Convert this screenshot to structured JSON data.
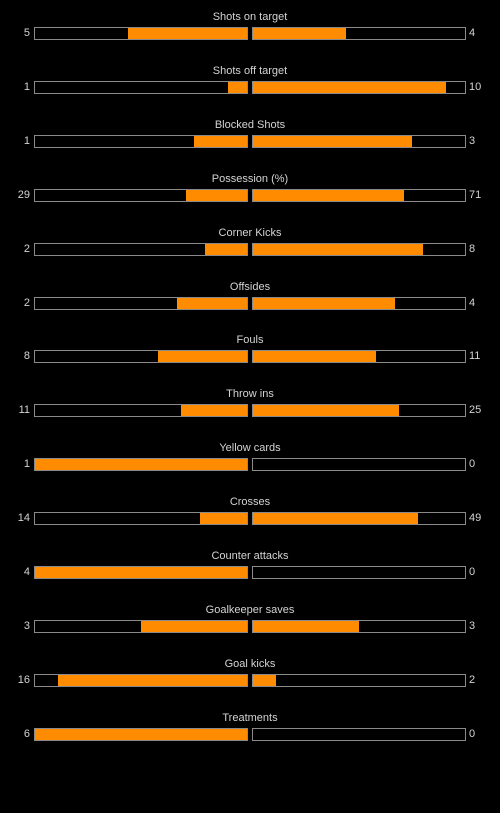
{
  "colors": {
    "background": "#000000",
    "bar_fill": "#ff8c00",
    "bar_border": "#8a8a8a",
    "text": "#d4d4d4"
  },
  "stats": [
    {
      "label": "Shots on target",
      "home_display": "5",
      "away_display": "4",
      "home_fill": 0.56,
      "away_fill": 0.44
    },
    {
      "label": "Shots off target",
      "home_display": "1",
      "away_display": "10",
      "home_fill": 0.09,
      "away_fill": 0.91
    },
    {
      "label": "Blocked Shots",
      "home_display": "1",
      "away_display": "3",
      "home_fill": 0.25,
      "away_fill": 0.75
    },
    {
      "label": "Possession (%)",
      "home_display": "29",
      "away_display": "71",
      "home_fill": 0.29,
      "away_fill": 0.71
    },
    {
      "label": "Corner Kicks",
      "home_display": "2",
      "away_display": "8",
      "home_fill": 0.2,
      "away_fill": 0.8
    },
    {
      "label": "Offsides",
      "home_display": "2",
      "away_display": "4",
      "home_fill": 0.33,
      "away_fill": 0.67
    },
    {
      "label": "Fouls",
      "home_display": "8",
      "away_display": "11",
      "home_fill": 0.42,
      "away_fill": 0.58
    },
    {
      "label": "Throw ins",
      "home_display": "11",
      "away_display": "25",
      "home_fill": 0.31,
      "away_fill": 0.69
    },
    {
      "label": "Yellow cards",
      "home_display": "1",
      "away_display": "0",
      "home_fill": 1.0,
      "away_fill": 0.0
    },
    {
      "label": "Crosses",
      "home_display": "14",
      "away_display": "49",
      "home_fill": 0.22,
      "away_fill": 0.78
    },
    {
      "label": "Counter attacks",
      "home_display": "4",
      "away_display": "0",
      "home_fill": 1.0,
      "away_fill": 0.0
    },
    {
      "label": "Goalkeeper saves",
      "home_display": "3",
      "away_display": "3",
      "home_fill": 0.5,
      "away_fill": 0.5
    },
    {
      "label": "Goal kicks",
      "home_display": "16",
      "away_display": "2",
      "home_fill": 0.89,
      "away_fill": 0.11
    },
    {
      "label": "Treatments",
      "home_display": "6",
      "away_display": "0",
      "home_fill": 1.0,
      "away_fill": 0.0
    }
  ]
}
